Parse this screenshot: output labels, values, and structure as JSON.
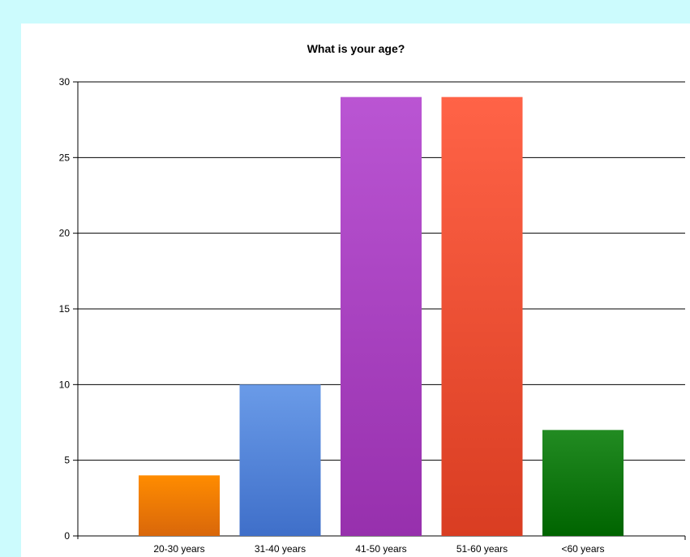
{
  "chart_data": {
    "type": "bar",
    "title": "What is your age?",
    "xlabel": "",
    "ylabel": "",
    "categories": [
      "20-30 years",
      "31-40 years",
      "41-50 years",
      "51-60 years",
      "<60 years"
    ],
    "values": [
      4,
      10,
      29,
      29,
      7
    ],
    "ylim": [
      0,
      30
    ],
    "yticks": [
      0,
      5,
      10,
      15,
      20,
      25,
      30
    ],
    "grid": true,
    "legend": "none",
    "colors": [
      {
        "top": "#ff8c00",
        "bottom": "#d9670a"
      },
      {
        "top": "#6a9be8",
        "bottom": "#3f6fc9"
      },
      {
        "top": "#ba55d3",
        "bottom": "#9730ad"
      },
      {
        "top": "#ff6347",
        "bottom": "#d93d22"
      },
      {
        "top": "#228b22",
        "bottom": "#006400"
      }
    ]
  }
}
